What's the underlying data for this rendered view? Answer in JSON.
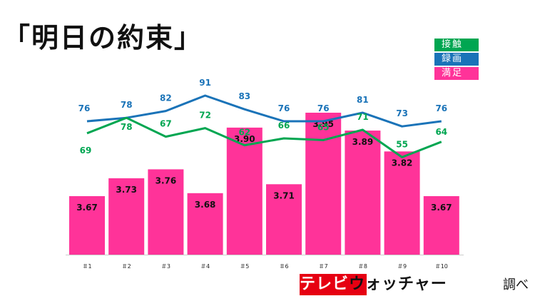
{
  "title": "「明日の約束」",
  "logo": {
    "part1": "テレビ",
    "part2": "ウォッチャー",
    "suffix": "調べ"
  },
  "colors": {
    "contact": "#00a651",
    "recording": "#1a73b8",
    "satisfaction": "#ff3399"
  },
  "chart_data": {
    "type": "bar",
    "categories": [
      "＃1",
      "＃2",
      "＃3",
      "＃4",
      "＃5",
      "＃6",
      "＃7",
      "＃8",
      "＃9",
      "＃10"
    ],
    "series": [
      {
        "name": "接触",
        "type": "line",
        "values": [
          69,
          78,
          67,
          72,
          62,
          66,
          65,
          71,
          55,
          64
        ]
      },
      {
        "name": "録画",
        "type": "line",
        "values": [
          76,
          78,
          82,
          91,
          83,
          76,
          76,
          81,
          73,
          76
        ]
      },
      {
        "name": "満足",
        "type": "bar",
        "values": [
          3.67,
          3.73,
          3.76,
          3.68,
          3.9,
          3.71,
          3.95,
          3.89,
          3.82,
          3.67
        ]
      }
    ],
    "bar_value_labels": [
      "3.67",
      "3.73",
      "3.76",
      "3.68",
      "3.90",
      "3.71",
      "3.95",
      "3.89",
      "3.82",
      "3.67"
    ],
    "legend_position": "top-right",
    "grid": false
  }
}
